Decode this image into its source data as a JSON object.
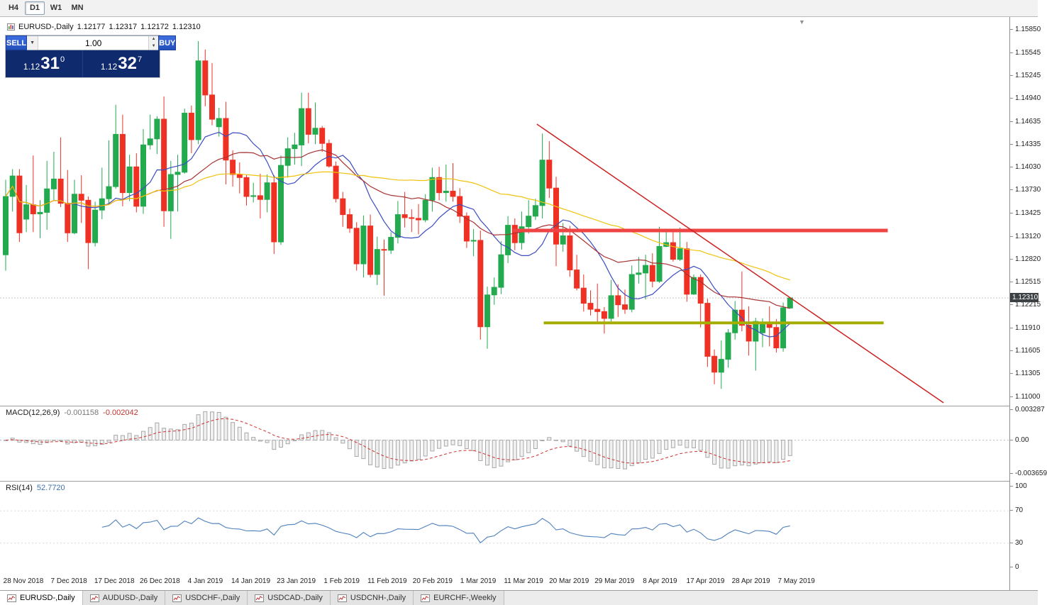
{
  "toolbar": {
    "timeframes": [
      {
        "label": "H4",
        "active": false
      },
      {
        "label": "D1",
        "active": true
      },
      {
        "label": "W1",
        "active": false
      },
      {
        "label": "MN",
        "active": false
      }
    ]
  },
  "chart_header": {
    "symbol_period": "EURUSD-,Daily",
    "open": "1.12177",
    "high": "1.12317",
    "low": "1.12172",
    "close": "1.12310"
  },
  "trade_panel": {
    "sell_label": "SELL",
    "buy_label": "BUY",
    "lot_size": "1.00",
    "sell_price": {
      "prefix": "1.12",
      "pips": "31",
      "point": "0"
    },
    "buy_price": {
      "prefix": "1.12",
      "pips": "32",
      "point": "7"
    }
  },
  "price_axis": {
    "labels": [
      "1.15850",
      "1.15545",
      "1.15245",
      "1.14940",
      "1.14635",
      "1.14335",
      "1.14030",
      "1.13730",
      "1.13425",
      "1.13120",
      "1.12820",
      "1.12515",
      "1.12215",
      "1.11910",
      "1.11605",
      "1.11305",
      "1.11000"
    ],
    "current_price": "1.12310",
    "current_price_value": 1.1231
  },
  "chart_data": {
    "type": "candlestick",
    "symbol": "EURUSD",
    "timeframe": "Daily",
    "title": "EURUSD-,Daily",
    "price_range": [
      1.11,
      1.1585
    ],
    "grid": false,
    "colors": {
      "bull": "#23a94e",
      "bear": "#ef3124",
      "background": "#ffffff"
    },
    "candles": [
      [
        1.1288,
        1.1387,
        1.1267,
        1.1365
      ],
      [
        1.1365,
        1.1401,
        1.1345,
        1.1392
      ],
      [
        1.1392,
        1.1401,
        1.1305,
        1.1317
      ],
      [
        1.1335,
        1.138,
        1.1318,
        1.1354
      ],
      [
        1.1354,
        1.1419,
        1.1318,
        1.1342
      ],
      [
        1.1342,
        1.136,
        1.131,
        1.1344
      ],
      [
        1.1344,
        1.1412,
        1.1321,
        1.1375
      ],
      [
        1.1375,
        1.1424,
        1.136,
        1.1388
      ],
      [
        1.1388,
        1.1443,
        1.1351,
        1.1356
      ],
      [
        1.1356,
        1.14,
        1.1305,
        1.1317
      ],
      [
        1.1317,
        1.1387,
        1.1315,
        1.1368
      ],
      [
        1.1368,
        1.1393,
        1.133,
        1.136
      ],
      [
        1.136,
        1.1365,
        1.1269,
        1.1304
      ],
      [
        1.1304,
        1.1358,
        1.1299,
        1.1347
      ],
      [
        1.1347,
        1.1403,
        1.1335,
        1.1362
      ],
      [
        1.1362,
        1.1439,
        1.1355,
        1.1378
      ],
      [
        1.1378,
        1.1486,
        1.1375,
        1.1447
      ],
      [
        1.1447,
        1.1473,
        1.1352,
        1.137
      ],
      [
        1.137,
        1.142,
        1.1359,
        1.1404
      ],
      [
        1.1404,
        1.1422,
        1.1344,
        1.1352
      ],
      [
        1.1352,
        1.1454,
        1.1342,
        1.1433
      ],
      [
        1.1433,
        1.1473,
        1.1427,
        1.1441
      ],
      [
        1.1441,
        1.1471,
        1.1421,
        1.1467
      ],
      [
        1.1467,
        1.1497,
        1.1325,
        1.1346
      ],
      [
        1.1346,
        1.1412,
        1.1309,
        1.1394
      ],
      [
        1.1394,
        1.142,
        1.1345,
        1.1397
      ],
      [
        1.1397,
        1.1481,
        1.1395,
        1.1475
      ],
      [
        1.1475,
        1.1485,
        1.1422,
        1.144
      ],
      [
        1.144,
        1.157,
        1.1434,
        1.1544
      ],
      [
        1.1544,
        1.1559,
        1.1484,
        1.1499
      ],
      [
        1.1499,
        1.1541,
        1.1459,
        1.1467
      ],
      [
        1.1457,
        1.1482,
        1.1444,
        1.1468
      ],
      [
        1.1468,
        1.149,
        1.1381,
        1.1413
      ],
      [
        1.1413,
        1.1426,
        1.1378,
        1.1394
      ],
      [
        1.1394,
        1.141,
        1.1369,
        1.139
      ],
      [
        1.139,
        1.1394,
        1.1353,
        1.1365
      ],
      [
        1.1365,
        1.1383,
        1.1357,
        1.1366
      ],
      [
        1.1366,
        1.1395,
        1.1336,
        1.1361
      ],
      [
        1.1361,
        1.1394,
        1.1344,
        1.1383
      ],
      [
        1.1383,
        1.1393,
        1.1289,
        1.1305
      ],
      [
        1.1305,
        1.1419,
        1.1301,
        1.1406
      ],
      [
        1.1406,
        1.1443,
        1.139,
        1.1428
      ],
      [
        1.1428,
        1.1449,
        1.1407,
        1.1433
      ],
      [
        1.1433,
        1.1502,
        1.1405,
        1.1481
      ],
      [
        1.1481,
        1.1502,
        1.1435,
        1.1447
      ],
      [
        1.1447,
        1.1489,
        1.1434,
        1.1455
      ],
      [
        1.1455,
        1.1458,
        1.1424,
        1.1435
      ],
      [
        1.1435,
        1.144,
        1.1403,
        1.1405
      ],
      [
        1.1405,
        1.1411,
        1.1357,
        1.1362
      ],
      [
        1.1362,
        1.1371,
        1.1325,
        1.1341
      ],
      [
        1.1341,
        1.1349,
        1.1317,
        1.1323
      ],
      [
        1.1323,
        1.1331,
        1.1267,
        1.1276
      ],
      [
        1.1276,
        1.134,
        1.1258,
        1.1326
      ],
      [
        1.1326,
        1.1341,
        1.1258,
        1.1262
      ],
      [
        1.1262,
        1.1312,
        1.1248,
        1.1295
      ],
      [
        1.1295,
        1.1308,
        1.1234,
        1.1294
      ],
      [
        1.1294,
        1.1318,
        1.1289,
        1.1311
      ],
      [
        1.1311,
        1.1359,
        1.1303,
        1.1341
      ],
      [
        1.1341,
        1.1371,
        1.1324,
        1.1337
      ],
      [
        1.1337,
        1.1348,
        1.1318,
        1.1336
      ],
      [
        1.1336,
        1.1355,
        1.1315,
        1.1334
      ],
      [
        1.1334,
        1.1368,
        1.1331,
        1.136
      ],
      [
        1.136,
        1.1403,
        1.1345,
        1.139
      ],
      [
        1.139,
        1.1404,
        1.136,
        1.137
      ],
      [
        1.137,
        1.1407,
        1.1358,
        1.1372
      ],
      [
        1.1372,
        1.1409,
        1.1358,
        1.1365
      ],
      [
        1.1365,
        1.1376,
        1.133,
        1.1339
      ],
      [
        1.1339,
        1.1344,
        1.1297,
        1.1306
      ],
      [
        1.1306,
        1.1322,
        1.1286,
        1.1307
      ],
      [
        1.1307,
        1.132,
        1.1176,
        1.1193
      ],
      [
        1.1193,
        1.1246,
        1.1164,
        1.1235
      ],
      [
        1.1235,
        1.1258,
        1.1222,
        1.1245
      ],
      [
        1.1245,
        1.1306,
        1.1236,
        1.1288
      ],
      [
        1.1288,
        1.1339,
        1.1277,
        1.1327
      ],
      [
        1.1327,
        1.1336,
        1.1294,
        1.1304
      ],
      [
        1.1304,
        1.1345,
        1.1295,
        1.1325
      ],
      [
        1.1325,
        1.136,
        1.1316,
        1.1339
      ],
      [
        1.1339,
        1.1362,
        1.1334,
        1.1353
      ],
      [
        1.1353,
        1.1448,
        1.1336,
        1.1413
      ],
      [
        1.1413,
        1.1438,
        1.1363,
        1.1376
      ],
      [
        1.1376,
        1.1391,
        1.1273,
        1.1302
      ],
      [
        1.1302,
        1.133,
        1.1292,
        1.1313
      ],
      [
        1.1313,
        1.1326,
        1.1259,
        1.1268
      ],
      [
        1.1268,
        1.1288,
        1.1241,
        1.1244
      ],
      [
        1.1244,
        1.1262,
        1.1213,
        1.1224
      ],
      [
        1.1224,
        1.1241,
        1.1208,
        1.1216
      ],
      [
        1.1216,
        1.125,
        1.1198,
        1.1213
      ],
      [
        1.1213,
        1.1219,
        1.1184,
        1.1204
      ],
      [
        1.1204,
        1.1255,
        1.12,
        1.1234
      ],
      [
        1.1234,
        1.1249,
        1.1206,
        1.1222
      ],
      [
        1.1222,
        1.1242,
        1.121,
        1.1216
      ],
      [
        1.1216,
        1.1274,
        1.1212,
        1.1262
      ],
      [
        1.1262,
        1.1285,
        1.125,
        1.1264
      ],
      [
        1.1264,
        1.1288,
        1.1229,
        1.1274
      ],
      [
        1.1274,
        1.129,
        1.1245,
        1.1253
      ],
      [
        1.1253,
        1.1325,
        1.1251,
        1.1299
      ],
      [
        1.1299,
        1.1319,
        1.1298,
        1.1304
      ],
      [
        1.1304,
        1.1322,
        1.1279,
        1.1282
      ],
      [
        1.1282,
        1.1324,
        1.128,
        1.1296
      ],
      [
        1.1296,
        1.1305,
        1.1226,
        1.1236
      ],
      [
        1.1236,
        1.1262,
        1.1235,
        1.1258
      ],
      [
        1.1258,
        1.1262,
        1.1192,
        1.1224
      ],
      [
        1.1224,
        1.123,
        1.114,
        1.1154
      ],
      [
        1.1154,
        1.1163,
        1.1117,
        1.1133
      ],
      [
        1.1133,
        1.1175,
        1.1111,
        1.115
      ],
      [
        1.115,
        1.119,
        1.1139,
        1.1185
      ],
      [
        1.1185,
        1.1227,
        1.1176,
        1.1215
      ],
      [
        1.1215,
        1.1266,
        1.1187,
        1.1195
      ],
      [
        1.1195,
        1.122,
        1.1155,
        1.1174
      ],
      [
        1.1174,
        1.1205,
        1.1135,
        1.12
      ],
      [
        1.1185,
        1.1204,
        1.1166,
        1.1198
      ],
      [
        1.1198,
        1.122,
        1.1167,
        1.1192
      ],
      [
        1.1192,
        1.1203,
        1.1159,
        1.1165
      ],
      [
        1.1165,
        1.1225,
        1.116,
        1.1218
      ],
      [
        1.12177,
        1.12317,
        1.12172,
        1.1231
      ]
    ],
    "moving_averages": [
      {
        "period": 10,
        "color": "#3b4cc0"
      },
      {
        "period": 21,
        "color": "#a83232"
      },
      {
        "period": 50,
        "color": "#f0c20c"
      }
    ],
    "objects": {
      "resistance_line": {
        "price": 1.132,
        "from_index": 73.7,
        "to_index": 128.2,
        "color": "#ef4444",
        "width": 5
      },
      "support_line": {
        "price": 1.1198,
        "from_index": 78.2,
        "to_index": 127.6,
        "color": "#a5ad00",
        "width": 4
      },
      "trendline": {
        "from": {
          "index": 77.2,
          "price": 1.14605
        },
        "to": {
          "index": 136.3,
          "price": 1.10926
        },
        "color": "#cc2222",
        "width": 1.5
      }
    },
    "indicators": {
      "macd": {
        "label": "MACD(12,26,9)",
        "main_value": "-0.001158",
        "signal_value": "-0.002042",
        "fast": 12,
        "slow": 26,
        "signal": 9,
        "axis": {
          "max": "0.003287",
          "zero": "0.00",
          "min": "-0.003659"
        },
        "histogram_fill": "#f0f0f0",
        "histogram_stroke": "#a8a8a8",
        "signal_color": "#d03030"
      },
      "rsi": {
        "label": "RSI(14)",
        "value": "52.7720",
        "period": 14,
        "axis": [
          "100",
          "70",
          "30",
          "0"
        ],
        "levels": [
          70,
          30
        ],
        "line_color": "#4f81bd"
      }
    },
    "dates": [
      "28 Nov 2018",
      "7 Dec 2018",
      "17 Dec 2018",
      "26 Dec 2018",
      "4 Jan 2019",
      "14 Jan 2019",
      "23 Jan 2019",
      "1 Feb 2019",
      "11 Feb 2019",
      "20 Feb 2019",
      "1 Mar 2019",
      "11 Mar 2019",
      "20 Mar 2019",
      "29 Mar 2019",
      "8 Apr 2019",
      "17 Apr 2019",
      "28 Apr 2019",
      "7 May 2019"
    ]
  },
  "tabs": [
    {
      "label": "EURUSD-,Daily",
      "active": true
    },
    {
      "label": "AUDUSD-,Daily",
      "active": false
    },
    {
      "label": "USDCHF-,Daily",
      "active": false
    },
    {
      "label": "USDCAD-,Daily",
      "active": false
    },
    {
      "label": "USDCNH-,Daily",
      "active": false
    },
    {
      "label": "EURCHF-,Weekly",
      "active": false
    }
  ]
}
